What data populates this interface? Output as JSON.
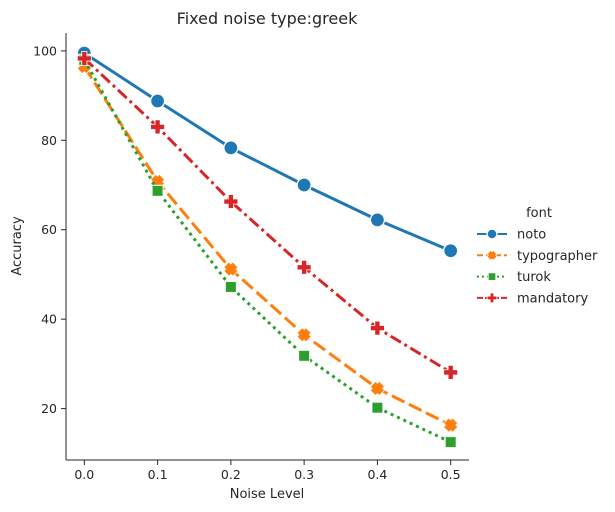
{
  "chart_data": {
    "type": "line",
    "title": "Fixed noise type:greek",
    "xlabel": "Noise Level",
    "ylabel": "Accuracy",
    "x": [
      0.0,
      0.1,
      0.2,
      0.3,
      0.4,
      0.5
    ],
    "x_ticks": [
      "0.0",
      "0.1",
      "0.2",
      "0.3",
      "0.4",
      "0.5"
    ],
    "y_ticks": [
      "20",
      "40",
      "60",
      "80",
      "100"
    ],
    "xlim": [
      -0.025,
      0.525
    ],
    "ylim": [
      8.5,
      104
    ],
    "grid": false,
    "legend": {
      "title": "font",
      "placement": "center-right"
    },
    "series": [
      {
        "name": "noto",
        "values": [
          99.5,
          88.8,
          78.3,
          70.0,
          62.2,
          55.3
        ],
        "color": "#1f77b4",
        "dash": "solid",
        "marker": "circle"
      },
      {
        "name": "typographer",
        "values": [
          96.5,
          70.8,
          51.2,
          36.5,
          24.5,
          16.3
        ],
        "color": "#ff7f0e",
        "dash": "dashed",
        "marker": "x"
      },
      {
        "name": "turok",
        "values": [
          98.0,
          68.7,
          47.2,
          31.8,
          20.2,
          12.5
        ],
        "color": "#2ca02c",
        "dash": "dotted",
        "marker": "square"
      },
      {
        "name": "mandatory",
        "values": [
          98.3,
          83.0,
          66.3,
          51.6,
          38.0,
          28.1
        ],
        "color": "#d62728",
        "dash": "dashdot",
        "marker": "plus"
      }
    ]
  }
}
